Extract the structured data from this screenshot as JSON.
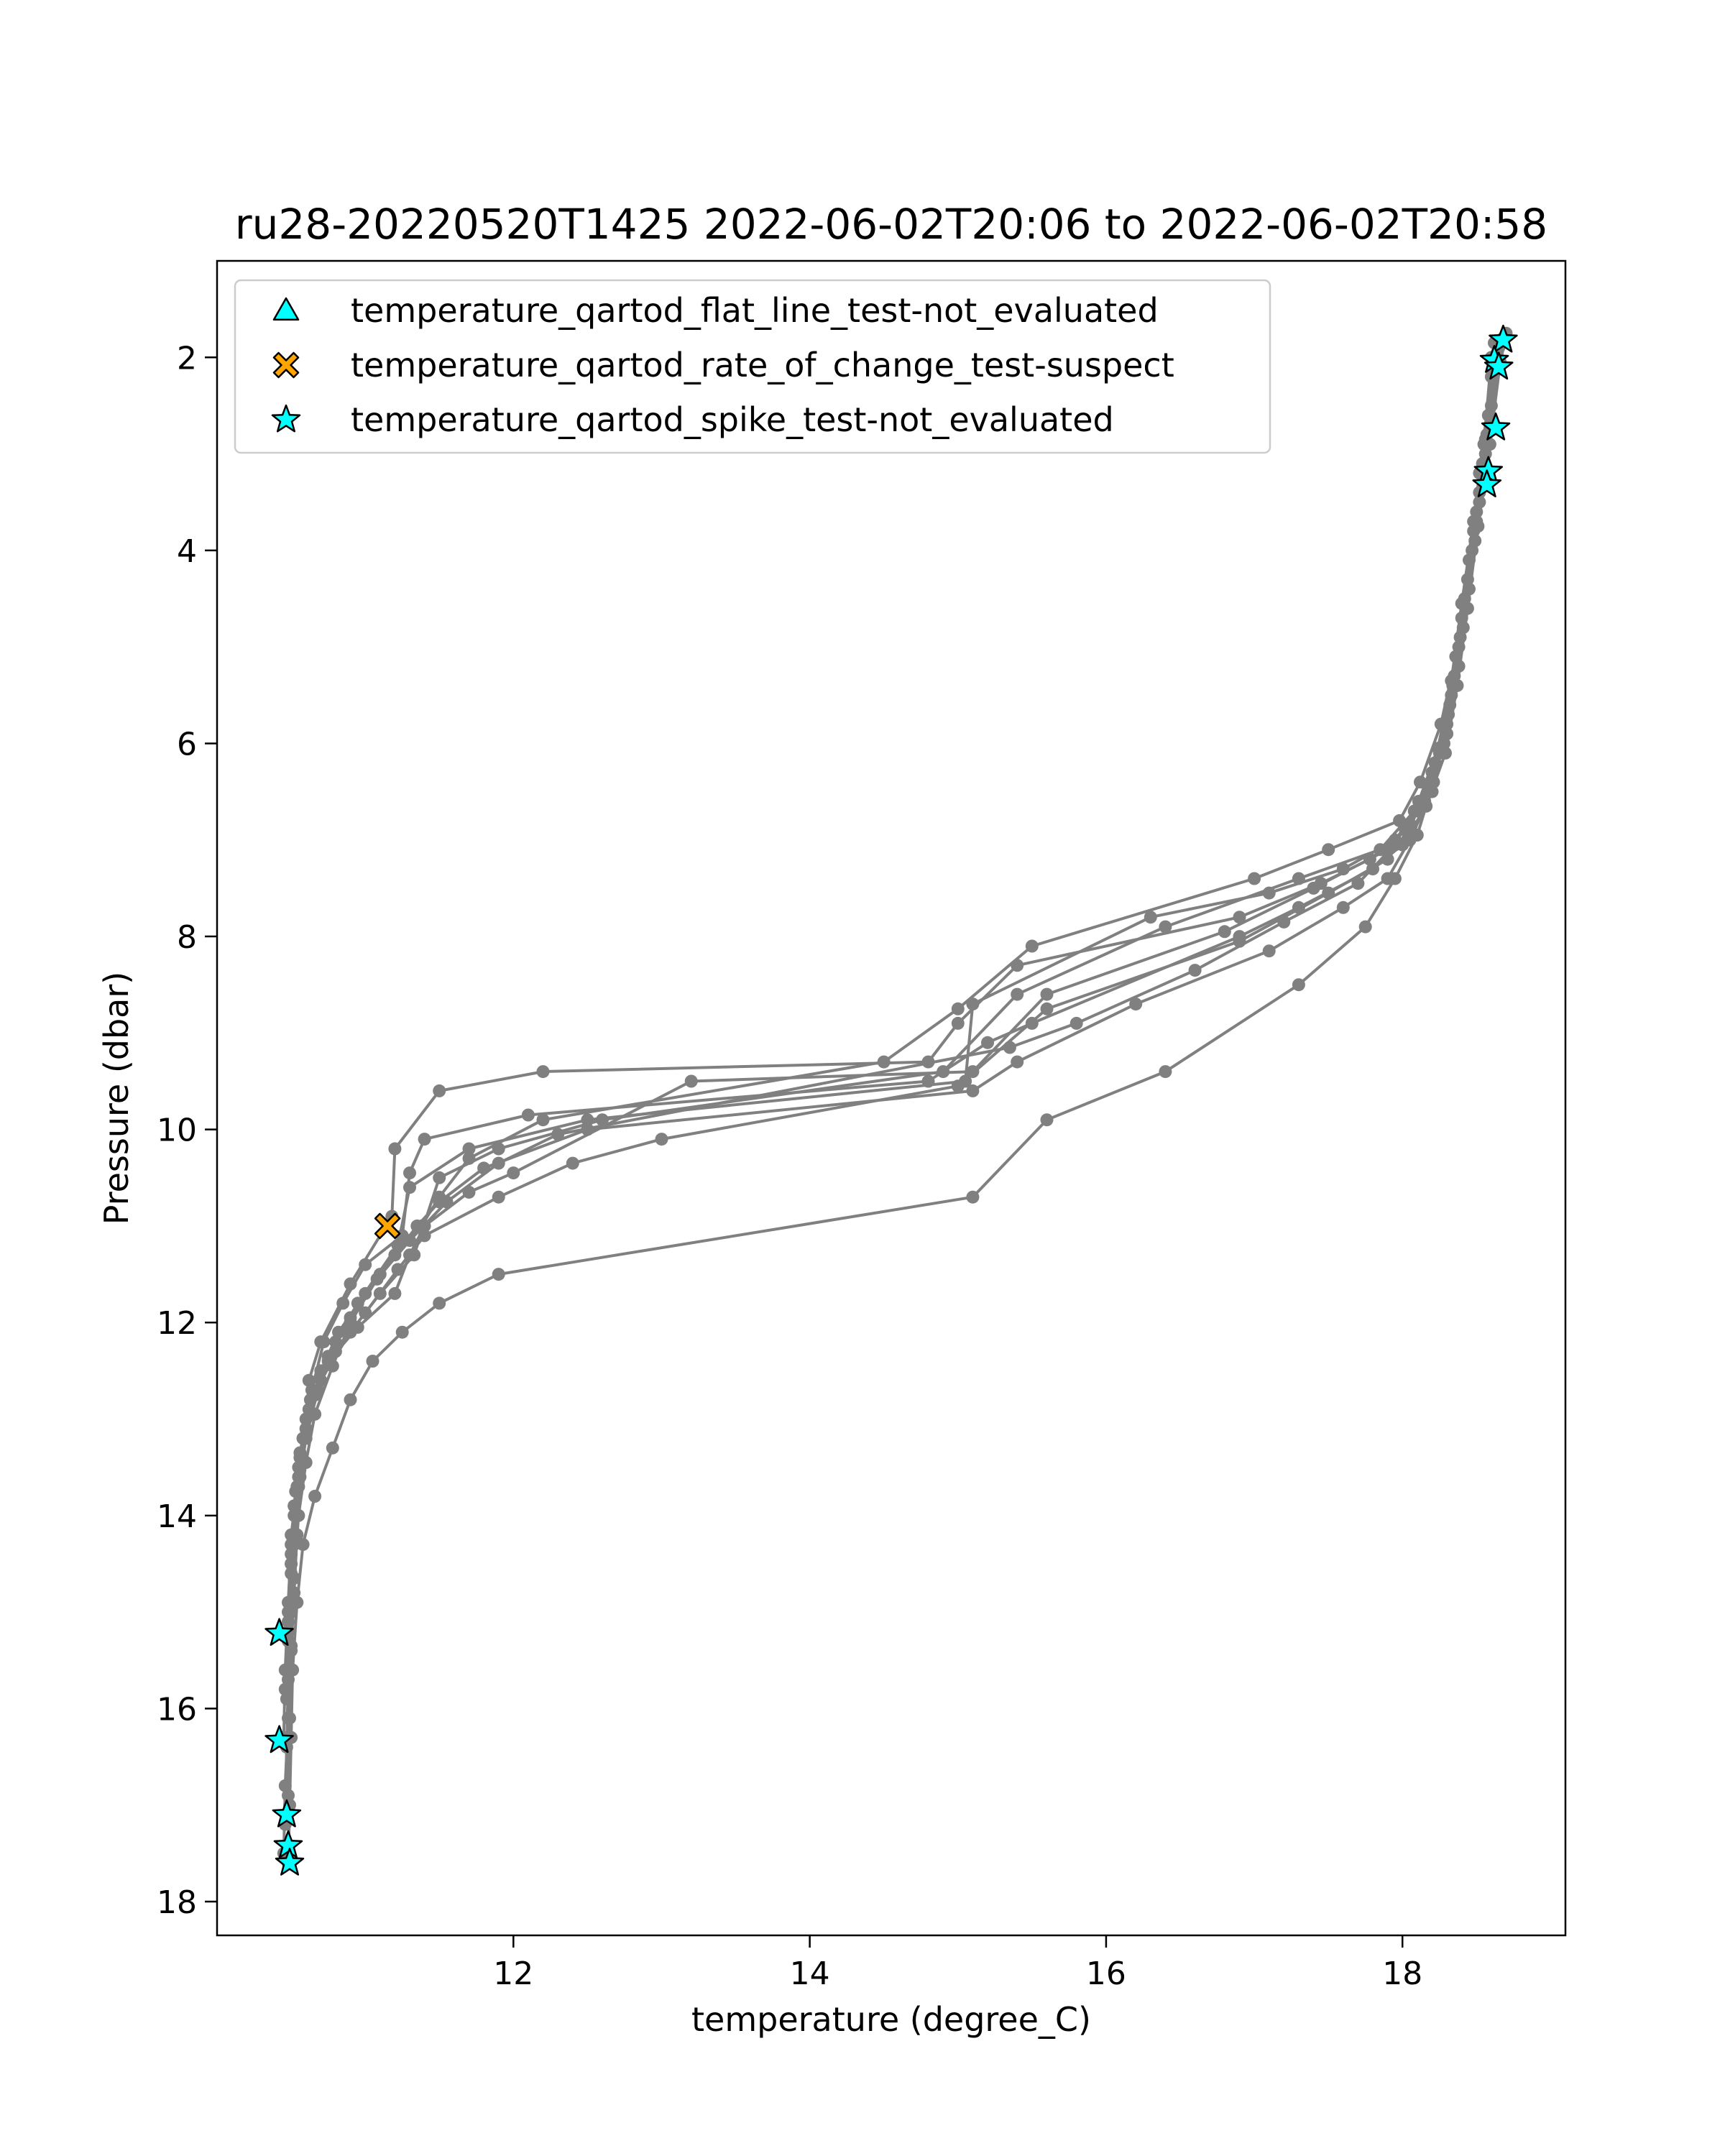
{
  "chart_data": {
    "type": "scatter",
    "title": "ru28-20220520T1425 2022-06-02T20:06 to 2022-06-02T20:58",
    "xlabel": "temperature (degree_C)",
    "ylabel": "Pressure (dbar)",
    "xlim": [
      10.0,
      19.1
    ],
    "ylim": [
      18.35,
      1.0
    ],
    "y_inverted": true,
    "xticks": [
      12,
      14,
      16,
      18
    ],
    "yticks": [
      2,
      4,
      6,
      8,
      10,
      12,
      14,
      16,
      18
    ],
    "grid": false,
    "legend_position": "upper left",
    "colors": {
      "profile": "#808080",
      "flat_line": "#00FFFF",
      "rate_of_change": "#FFA500",
      "spike": "#00FFFF",
      "marker_edge": "#000000"
    },
    "profiles": [
      {
        "x": [
          18.62,
          18.58,
          18.52,
          18.45,
          18.38,
          18.3,
          18.18,
          18.02,
          17.78,
          17.45,
          16.9,
          15.4,
          15.0,
          14.8,
          12.2,
          11.5,
          11.2,
          11.18,
          10.9,
          10.7,
          10.62,
          10.6,
          10.56,
          10.54,
          10.52,
          10.5,
          10.48,
          10.46,
          10.45
        ],
        "y": [
          1.85,
          2.6,
          3.5,
          4.4,
          5.2,
          5.9,
          6.5,
          6.9,
          7.2,
          7.45,
          7.8,
          8.3,
          8.9,
          9.3,
          9.4,
          9.6,
          10.2,
          10.9,
          11.6,
          12.2,
          12.6,
          13.1,
          13.6,
          14.2,
          14.8,
          15.4,
          16.1,
          16.8,
          17.5
        ]
      },
      {
        "x": [
          18.68,
          18.6,
          18.5,
          18.42,
          18.35,
          18.28,
          18.15,
          17.95,
          17.6,
          17.1,
          16.3,
          15.1,
          15.05,
          12.5,
          11.7,
          11.3,
          11.22,
          10.95,
          10.8,
          10.68,
          10.6,
          10.55,
          10.52,
          10.5,
          10.48,
          10.47,
          10.46
        ],
        "y": [
          1.8,
          2.7,
          3.6,
          4.5,
          5.3,
          6.0,
          6.6,
          7.0,
          7.3,
          7.55,
          7.8,
          8.7,
          9.5,
          9.9,
          10.2,
          10.6,
          11.2,
          11.8,
          12.2,
          12.7,
          13.2,
          13.7,
          14.3,
          15.0,
          15.7,
          16.4,
          17.2
        ]
      },
      {
        "x": [
          18.6,
          18.55,
          18.48,
          18.4,
          18.33,
          18.22,
          18.08,
          17.85,
          17.3,
          16.4,
          15.4,
          14.9,
          12.6,
          11.9,
          11.5,
          11.33,
          11.1,
          10.9,
          10.7,
          10.6,
          10.55,
          10.5,
          10.48,
          10.46
        ],
        "y": [
          2.0,
          2.9,
          3.8,
          4.7,
          5.5,
          6.2,
          6.7,
          7.1,
          7.4,
          7.9,
          8.6,
          9.4,
          9.9,
          10.2,
          10.5,
          11.3,
          11.7,
          12.1,
          12.6,
          13.1,
          13.6,
          14.2,
          15.0,
          15.8
        ]
      },
      {
        "x": [
          18.65,
          18.57,
          18.5,
          18.43,
          18.34,
          18.25,
          18.1,
          17.9,
          17.4,
          16.8,
          15.6,
          15.1,
          13.2,
          12.0,
          11.7,
          11.4,
          11.3,
          11.2,
          10.95,
          10.75,
          10.62,
          10.56,
          10.52,
          10.5,
          10.48
        ],
        "y": [
          1.9,
          2.8,
          3.7,
          4.6,
          5.4,
          6.1,
          6.7,
          7.1,
          7.5,
          7.95,
          8.6,
          9.4,
          9.5,
          10.45,
          10.65,
          11.0,
          11.3,
          11.7,
          12.05,
          12.4,
          12.9,
          13.4,
          13.9,
          14.5,
          15.2
        ]
      },
      {
        "x": [
          18.7,
          18.6,
          18.52,
          18.44,
          18.36,
          18.26,
          18.12,
          17.98,
          17.5,
          17.0,
          15.5,
          15.0,
          14.5,
          12.2,
          11.7,
          11.5,
          11.38,
          11.2,
          11.0,
          10.82,
          10.7,
          10.6,
          10.55,
          10.52,
          10.5,
          10.48
        ],
        "y": [
          1.75,
          2.5,
          3.4,
          4.3,
          5.1,
          5.8,
          6.4,
          6.8,
          7.1,
          7.4,
          8.1,
          8.75,
          9.3,
          9.9,
          10.3,
          10.7,
          11.0,
          11.3,
          11.7,
          12.1,
          12.5,
          13.0,
          13.5,
          14.0,
          14.6,
          15.3
        ]
      },
      {
        "x": [
          18.66,
          18.59,
          18.51,
          18.44,
          18.37,
          18.29,
          18.16,
          18.0,
          17.8,
          17.3,
          16.9,
          15.5,
          15.2,
          14.8,
          12.1,
          11.4,
          11.3,
          11.25,
          11.0,
          10.85,
          10.72,
          10.64,
          10.58,
          10.54,
          10.5,
          10.48,
          10.47
        ],
        "y": [
          2.05,
          2.9,
          3.75,
          4.6,
          5.4,
          6.1,
          6.65,
          7.05,
          7.3,
          7.7,
          8.0,
          8.9,
          9.1,
          9.5,
          9.85,
          10.1,
          10.45,
          11.1,
          11.4,
          11.8,
          12.2,
          12.7,
          13.2,
          13.7,
          14.4,
          15.1,
          15.9
        ]
      },
      {
        "x": [
          18.63,
          18.56,
          18.49,
          18.41,
          18.32,
          18.2,
          18.06,
          17.9,
          17.5,
          16.9,
          15.6,
          15.0,
          13.0,
          12.4,
          11.9,
          11.4,
          11.22,
          11.0,
          10.8,
          10.66,
          10.58,
          10.53,
          10.5,
          10.48,
          10.46,
          10.45
        ],
        "y": [
          2.1,
          3.0,
          3.9,
          4.8,
          5.6,
          6.3,
          6.85,
          7.2,
          7.55,
          8.05,
          8.75,
          9.55,
          10.1,
          10.35,
          10.7,
          11.1,
          11.45,
          11.9,
          12.3,
          12.75,
          13.2,
          13.75,
          14.3,
          14.9,
          15.6,
          16.3
        ]
      },
      {
        "x": [
          18.61,
          18.54,
          18.47,
          18.39,
          18.31,
          18.21,
          18.1,
          17.95,
          17.75,
          17.3,
          16.4,
          15.6,
          15.1,
          11.9,
          11.5,
          11.25,
          11.05,
          10.9,
          10.78,
          10.66,
          10.58,
          10.54,
          10.51,
          10.5,
          10.49,
          10.48
        ],
        "y": [
          2.15,
          3.1,
          4.0,
          4.9,
          5.7,
          6.4,
          6.95,
          7.4,
          7.9,
          8.5,
          9.4,
          9.9,
          10.7,
          11.5,
          11.8,
          12.1,
          12.4,
          12.8,
          13.3,
          13.8,
          14.3,
          14.9,
          15.6,
          16.3,
          17.0,
          17.6
        ]
      },
      {
        "x": [
          18.6,
          18.52,
          18.45,
          18.38,
          18.3,
          18.2,
          18.05,
          17.9,
          17.6,
          17.1,
          16.2,
          15.4,
          15.1,
          12.5,
          11.8,
          11.5,
          11.35,
          11.1,
          10.9,
          10.75,
          10.63,
          10.56,
          10.52,
          10.5,
          10.48
        ],
        "y": [
          2.2,
          3.2,
          4.1,
          5.0,
          5.8,
          6.5,
          7.0,
          7.4,
          7.7,
          8.15,
          8.7,
          9.3,
          9.6,
          10.0,
          10.4,
          10.75,
          11.0,
          11.5,
          11.95,
          12.35,
          12.8,
          13.35,
          13.9,
          14.5,
          15.2
        ]
      },
      {
        "x": [
          18.64,
          18.56,
          18.48,
          18.4,
          18.33,
          18.24,
          18.11,
          17.95,
          17.7,
          17.2,
          16.6,
          15.8,
          15.35,
          12.3,
          11.9,
          11.55,
          11.3,
          11.08,
          10.9,
          10.78,
          10.66,
          10.6,
          10.55,
          10.52,
          10.5,
          10.49,
          10.48
        ],
        "y": [
          1.95,
          2.85,
          3.7,
          4.55,
          5.35,
          6.05,
          6.6,
          7.05,
          7.45,
          7.85,
          8.35,
          8.9,
          9.15,
          10.05,
          10.35,
          10.75,
          11.15,
          11.55,
          12.0,
          12.45,
          12.95,
          13.45,
          14.0,
          14.65,
          15.35,
          16.1,
          16.9
        ]
      }
    ],
    "series": [
      {
        "name": "temperature_qartod_flat_line_test-not_evaluated",
        "marker": "triangle",
        "x": [],
        "y": []
      },
      {
        "name": "temperature_qartod_rate_of_change_test-suspect",
        "marker": "x",
        "x": [
          11.15
        ],
        "y": [
          11.0
        ]
      },
      {
        "name": "temperature_qartod_spike_test-not_evaluated",
        "marker": "star",
        "x": [
          18.68,
          18.62,
          18.65,
          18.63,
          18.58,
          18.57,
          10.42,
          10.42,
          10.47,
          10.48,
          10.49
        ],
        "y": [
          1.82,
          2.03,
          2.1,
          2.73,
          3.18,
          3.32,
          15.22,
          16.33,
          17.1,
          17.42,
          17.6
        ]
      }
    ]
  }
}
